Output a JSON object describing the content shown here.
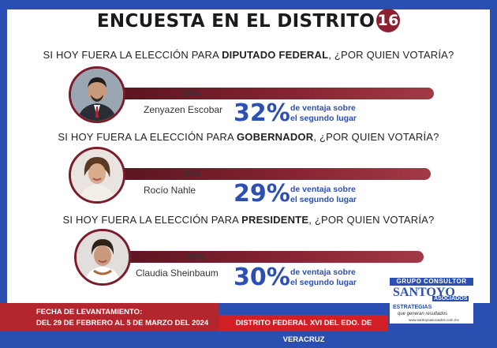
{
  "title": {
    "text": "ENCUESTA EN EL DISTRITO",
    "number": "16"
  },
  "colors": {
    "accent_blue": "#2b4fb3",
    "bar_maroon": "#8a2533",
    "footer_red": "#d21f26"
  },
  "sections": [
    {
      "question_prefix": "SI HOY FUERA LA ELECCIÓN PARA ",
      "question_bold": "DIPUTADO FEDERAL",
      "question_suffix": ", ¿POR QUIEN VOTARÍA?",
      "percent": "53%",
      "candidate": "Zenyazen Escobar",
      "advantage": "32%",
      "advantage_text_1": "de ventaja sobre",
      "advantage_text_2": "el segundo lugar"
    },
    {
      "question_prefix": "SI HOY FUERA LA ELECCIÓN PARA ",
      "question_bold": "GOBERNADOR",
      "question_suffix": ", ¿POR QUIEN VOTARÍA?",
      "percent": "52%",
      "candidate": "Rocío Nahle",
      "advantage": "29%",
      "advantage_text_1": "de ventaja sobre",
      "advantage_text_2": "el segundo lugar"
    },
    {
      "question_prefix": "SI HOY FUERA LA ELECCIÓN PARA ",
      "question_bold": "PRESIDENTE",
      "question_suffix": ", ¿POR QUIEN VOTARÍA?",
      "percent": "50%",
      "candidate": "Claudia Sheinbaum",
      "advantage": "30%",
      "advantage_text_1": "de ventaja sobre",
      "advantage_text_2": "el segundo lugar"
    }
  ],
  "logo": {
    "top": "GRUPO CONSULTOR",
    "main": "SANTOYO",
    "asociados": "ASOCIADOS",
    "estrategias": "ESTRATEGIAS",
    "slogan": "que generan resultados",
    "web": "www.santoyoasociados.com.mx"
  },
  "footer": {
    "left_line1": "FECHA DE LEVANTAMIENTO:",
    "left_line2": "DEL 29 DE FEBRERO AL 5 DE MARZO DEL 2024",
    "right": "DISTRITO FEDERAL XVI DEL EDO. DE VERACRUZ"
  }
}
